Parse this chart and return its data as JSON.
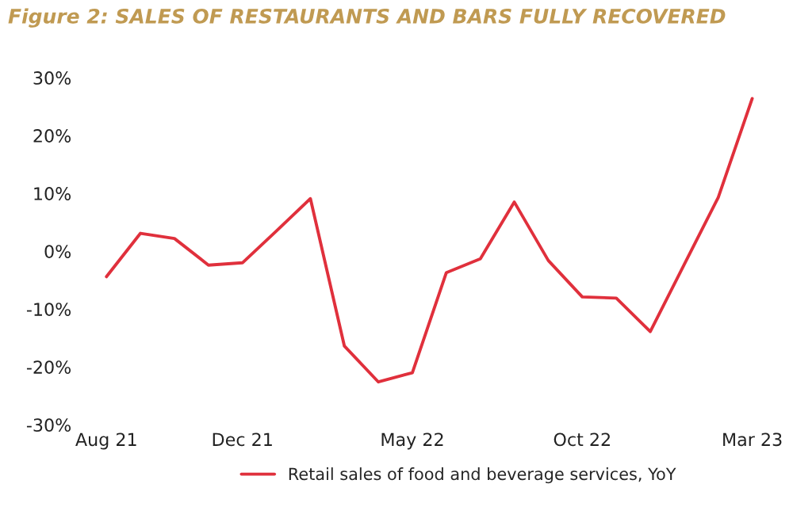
{
  "chart_data": {
    "type": "line",
    "title": "Figure 2: SALES OF RESTAURANTS AND BARS FULLY RECOVERED",
    "categories": [
      "Aug 21",
      null,
      null,
      null,
      "Dec 21",
      null,
      null,
      null,
      null,
      "May 22",
      null,
      null,
      null,
      null,
      "Oct 22",
      null,
      null,
      null,
      null,
      "Mar 23"
    ],
    "series": [
      {
        "name": "Retail sales of food and beverage services, YoY",
        "color": "#e0303c",
        "values": [
          -4.4,
          3.1,
          2.2,
          -2.4,
          -2.0,
          3.5,
          9.1,
          -16.4,
          -22.6,
          -21.0,
          -3.7,
          -1.3,
          8.5,
          -1.6,
          -7.9,
          -8.1,
          -13.9,
          -2.3,
          9.3,
          26.4
        ]
      }
    ],
    "ylim": [
      -30,
      30
    ],
    "yticks": [
      {
        "value": -30,
        "label": "-30%"
      },
      {
        "value": -20,
        "label": "-20%"
      },
      {
        "value": -10,
        "label": "-10%"
      },
      {
        "value": 0,
        "label": "0%"
      },
      {
        "value": 10,
        "label": "10%"
      },
      {
        "value": 20,
        "label": "20%"
      },
      {
        "value": 30,
        "label": "30%"
      }
    ],
    "grid": false,
    "legend": "bottom",
    "marker": "none",
    "line_style": "solid"
  }
}
